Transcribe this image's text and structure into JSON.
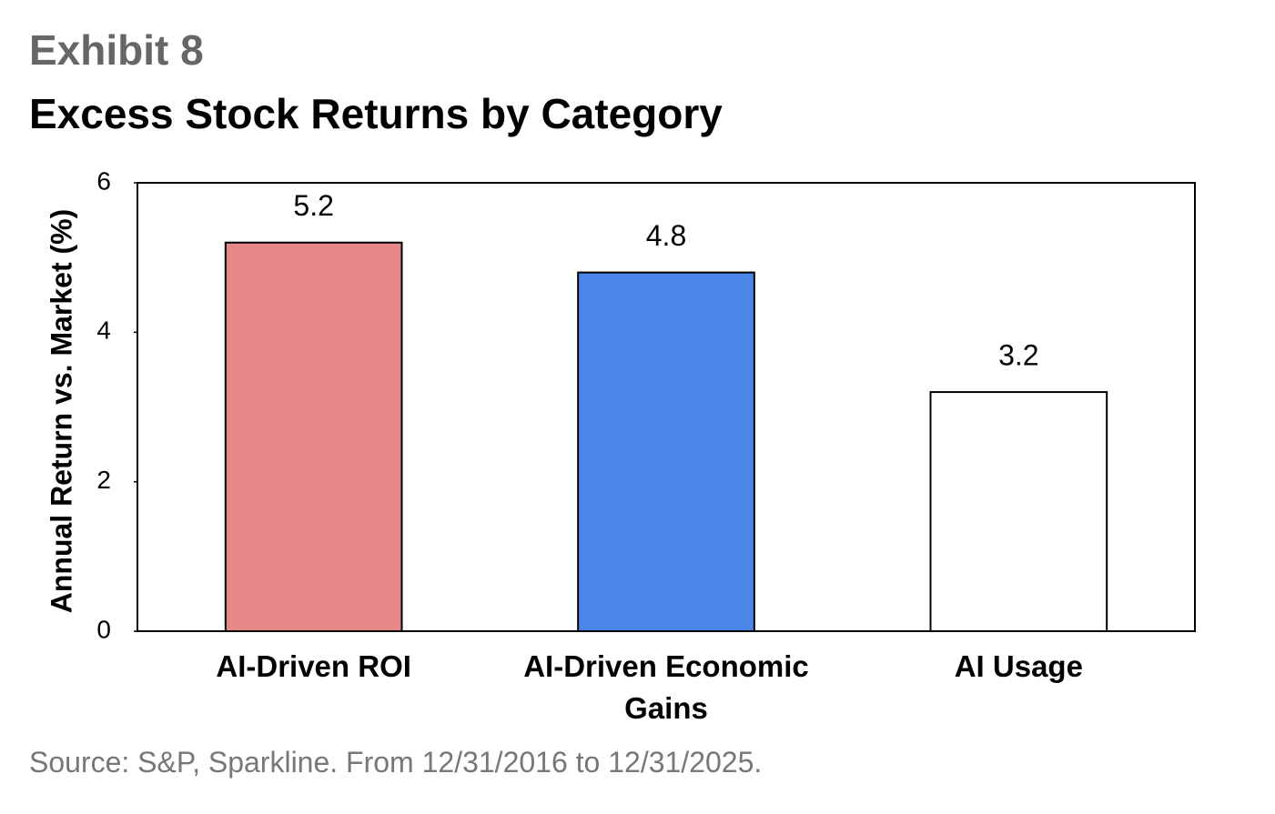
{
  "chart_data": {
    "type": "bar",
    "title": "Exhibit 8",
    "subtitle": "Excess Stock Returns by Category",
    "y_label": "Annual Return vs. Market (%)",
    "categories": [
      "AI-Driven ROI",
      "AI-Driven Economic Gains",
      "AI Usage"
    ],
    "values": [
      5.2,
      4.8,
      3.2
    ],
    "colors": [
      "#e68888",
      "#4a86e8",
      "#ffffff"
    ],
    "ylim": [
      0,
      6
    ],
    "yticks": [
      0,
      2,
      4,
      6
    ],
    "grid": false,
    "source": "Source: S&P, Sparkline. From 12/31/2016 to 12/31/2025."
  }
}
